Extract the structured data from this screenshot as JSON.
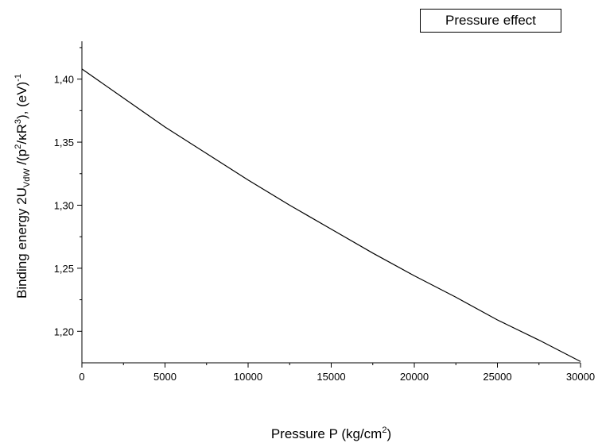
{
  "chart_data": {
    "type": "line",
    "legend": {
      "label": "Pressure effect",
      "placement": "top-right"
    },
    "xlabel": {
      "main": "Pressure P (kg/cm",
      "sup": "2",
      "tail": ")"
    },
    "ylabel": {
      "parts": [
        {
          "text": "Binding energy 2U",
          "style": "normal"
        },
        {
          "text": "VdW",
          "style": "sub"
        },
        {
          "text": " /(p",
          "style": "normal"
        },
        {
          "text": "2",
          "style": "sup"
        },
        {
          "text": "/κR",
          "style": "normal"
        },
        {
          "text": "3",
          "style": "sup"
        },
        {
          "text": "), (eV)",
          "style": "normal"
        },
        {
          "text": "-1",
          "style": "sup"
        }
      ]
    },
    "xlim": [
      0,
      30000
    ],
    "ylim": [
      1.175,
      1.43
    ],
    "x_ticks": [
      0,
      5000,
      10000,
      15000,
      20000,
      25000,
      30000
    ],
    "x_tick_labels": [
      "0",
      "5000",
      "10000",
      "15000",
      "20000",
      "25000",
      "30000"
    ],
    "y_ticks": [
      1.2,
      1.25,
      1.3,
      1.35,
      1.4
    ],
    "y_tick_labels": [
      "1,20",
      "1,25",
      "1,30",
      "1,35",
      "1,40"
    ],
    "grid": false,
    "series": [
      {
        "name": "Pressure effect",
        "color": "#000000",
        "x": [
          0,
          2500,
          5000,
          7500,
          10000,
          12500,
          15000,
          17500,
          20000,
          22500,
          25000,
          27500,
          30000
        ],
        "y": [
          1.408,
          1.385,
          1.362,
          1.341,
          1.32,
          1.3,
          1.281,
          1.262,
          1.244,
          1.227,
          1.209,
          1.193,
          1.176
        ]
      }
    ]
  }
}
